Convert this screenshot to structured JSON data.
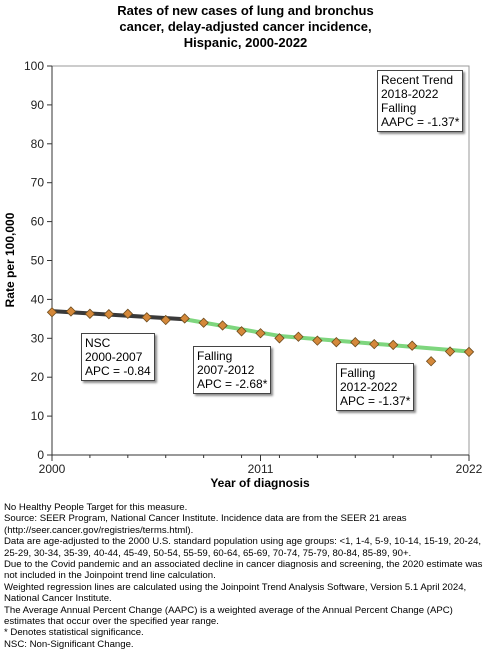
{
  "chart_data": {
    "type": "line",
    "title": [
      "Rates of new cases of lung and bronchus",
      "cancer, delay-adjusted cancer incidence,",
      "Hispanic,  2000-2022"
    ],
    "xlabel": "Year of diagnosis",
    "ylabel": "Rate per 100,000",
    "xlim": [
      2000,
      2022
    ],
    "ylim": [
      0,
      100
    ],
    "x_ticks": [
      2000,
      2011,
      2022
    ],
    "y_ticks": [
      0,
      10,
      20,
      30,
      40,
      50,
      60,
      70,
      80,
      90,
      100
    ],
    "grid": false,
    "points": [
      {
        "x": 2000,
        "y": 36.7
      },
      {
        "x": 2001,
        "y": 36.9
      },
      {
        "x": 2002,
        "y": 36.3
      },
      {
        "x": 2003,
        "y": 36.2
      },
      {
        "x": 2004,
        "y": 36.3
      },
      {
        "x": 2005,
        "y": 35.4
      },
      {
        "x": 2006,
        "y": 34.7
      },
      {
        "x": 2007,
        "y": 35.1
      },
      {
        "x": 2008,
        "y": 34.0
      },
      {
        "x": 2009,
        "y": 33.3
      },
      {
        "x": 2010,
        "y": 31.8
      },
      {
        "x": 2011,
        "y": 31.3
      },
      {
        "x": 2012,
        "y": 30.0
      },
      {
        "x": 2013,
        "y": 30.4
      },
      {
        "x": 2014,
        "y": 29.4
      },
      {
        "x": 2015,
        "y": 29.0
      },
      {
        "x": 2016,
        "y": 29.0
      },
      {
        "x": 2017,
        "y": 28.5
      },
      {
        "x": 2018,
        "y": 28.3
      },
      {
        "x": 2019,
        "y": 28.1
      },
      {
        "x": 2020,
        "y": 24.1
      },
      {
        "x": 2021,
        "y": 26.6
      },
      {
        "x": 2022,
        "y": 26.5
      }
    ],
    "trend_segments": [
      {
        "x": [
          2000,
          2007
        ],
        "y": [
          37.0,
          34.9
        ],
        "color": "#3a3a3a"
      },
      {
        "x": [
          2007,
          2012
        ],
        "y": [
          34.9,
          30.6
        ],
        "color": "#7ed67e"
      },
      {
        "x": [
          2012,
          2022
        ],
        "y": [
          30.6,
          26.6
        ],
        "color": "#7ed67e"
      }
    ],
    "marker_color": "#d4883a",
    "annotations": [
      {
        "lines": [
          "NSC",
          "2000-2007",
          "APC = -0.84"
        ]
      },
      {
        "lines": [
          "Falling",
          "2007-2012",
          "APC = -2.68*"
        ]
      },
      {
        "lines": [
          "Falling",
          "2012-2022",
          "APC = -1.37*"
        ]
      },
      {
        "lines": [
          "Recent Trend",
          "2018-2022",
          "Falling",
          "AAPC = -1.37*"
        ]
      }
    ]
  },
  "footnotes": [
    "No Healthy People Target for this measure.",
    "Source: SEER Program, National Cancer Institute. Incidence data are from the SEER 21 areas (http://seer.cancer.gov/registries/terms.html).",
    "Data are age-adjusted to the 2000 U.S. standard population using age groups: <1, 1-4, 5-9, 10-14, 15-19, 20-24, 25-29, 30-34, 35-39, 40-44, 45-49, 50-54, 55-59, 60-64, 65-69, 70-74, 75-79, 80-84, 85-89, 90+.",
    "Due to the Covid pandemic and an associated decline in cancer diagnosis and screening, the 2020 estimate was not included in the Joinpoint trend line calculation.",
    "Weighted regression lines are calculated using the Joinpoint Trend Analysis Software, Version 5.1 April 2024, National Cancer Institute.",
    "The Average Annual Percent Change (AAPC) is a weighted average of the Annual Percent Change (APC) estimates that occur over the specified year range.",
    "* Denotes statistical significance.",
    "NSC: Non-Significant Change."
  ]
}
